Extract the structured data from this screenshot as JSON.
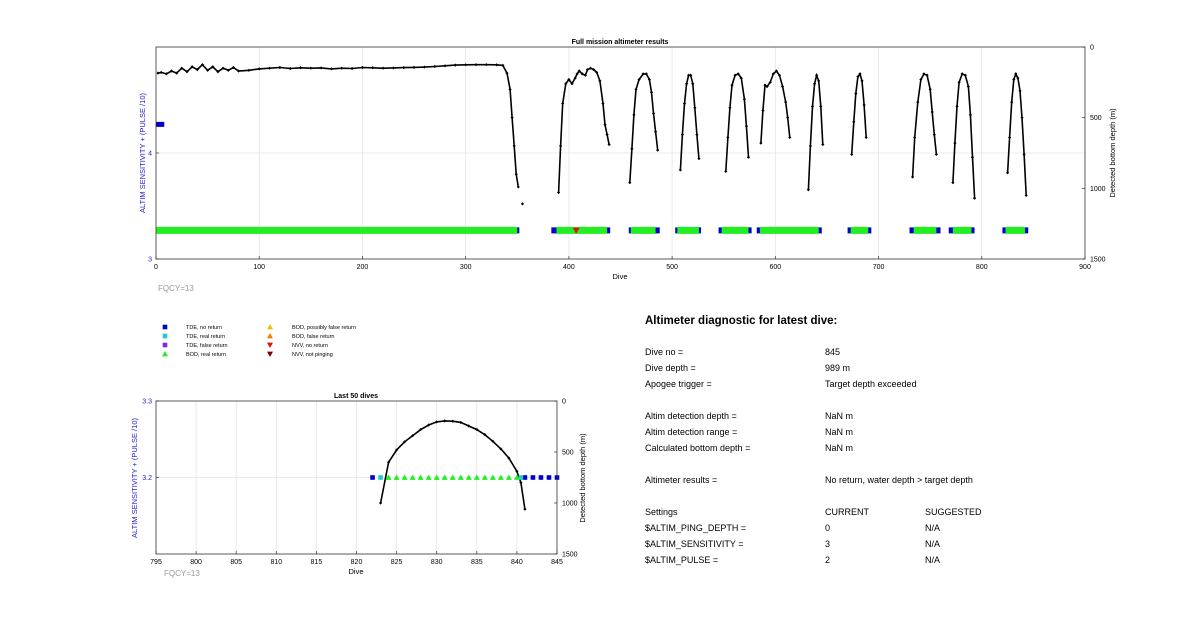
{
  "chart_data": [
    {
      "type": "scatter",
      "title": "Full mission altimeter results",
      "xlabel": "Dive",
      "ylabel": "ALTIM SENSITIVITY + (PULSE /10)",
      "y2label": "Detected bottom depth (m)",
      "xlim": [
        0,
        900
      ],
      "ylim": [
        3,
        5
      ],
      "y2lim": [
        1500,
        0
      ],
      "xticks": [
        "0",
        "100",
        "200",
        "300",
        "400",
        "500",
        "600",
        "700",
        "800",
        "900"
      ],
      "yticks": [
        "3",
        "4"
      ],
      "y2ticks": [
        "0",
        "500",
        "1000",
        "1500"
      ],
      "grid": true,
      "annotation": "FQCY=13",
      "sensitivity_setting": {
        "x": [
          0,
          8
        ],
        "y": 4.27
      },
      "tde_band": {
        "y": 3.27,
        "segments": [
          [
            0,
            352
          ],
          [
            383,
            440
          ],
          [
            458,
            488
          ],
          [
            503,
            528
          ],
          [
            545,
            577
          ],
          [
            582,
            642
          ],
          [
            628,
            645
          ],
          [
            670,
            693
          ],
          [
            730,
            760
          ],
          [
            768,
            793
          ],
          [
            820,
            845
          ]
        ]
      },
      "bod_band": {
        "y": 3.27,
        "segments": [
          [
            0,
            350
          ],
          [
            388,
            437
          ],
          [
            460,
            484
          ],
          [
            505,
            526
          ],
          [
            548,
            574
          ],
          [
            585,
            638
          ],
          [
            632,
            642
          ],
          [
            673,
            690
          ],
          [
            734,
            756
          ],
          [
            772,
            790
          ],
          [
            823,
            842
          ]
        ]
      },
      "nvv_no_return": {
        "x": [
          407
        ],
        "y": 3.27
      },
      "bottom_depth": {
        "groups": [
          {
            "x": [
              2,
              5,
              10,
              15,
              20,
              25,
              30,
              35,
              40,
              45,
              50,
              55,
              60,
              65,
              70,
              75,
              80,
              90,
              100,
              110,
              120,
              130,
              140,
              150,
              160,
              170,
              180,
              190,
              200,
              210,
              220,
              230,
              240,
              250,
              260,
              270,
              280,
              290,
              300,
              310,
              320,
              330,
              336,
              340,
              343,
              345,
              347,
              349,
              351
            ],
            "y": [
              185,
              180,
              190,
              170,
              185,
              150,
              175,
              140,
              160,
              125,
              165,
              140,
              175,
              150,
              165,
              145,
              170,
              165,
              155,
              150,
              145,
              152,
              147,
              150,
              148,
              155,
              150,
              152,
              145,
              147,
              150,
              148,
              146,
              144,
              142,
              138,
              133,
              128,
              126,
              125,
              125,
              126,
              130,
              185,
              300,
              500,
              700,
              900,
              990
            ]
          },
          {
            "x": [
              355
            ],
            "y": [
              1110
            ]
          },
          {
            "x": [
              390,
              392,
              394,
              397,
              400,
              403,
              406,
              408,
              410,
              413,
              416,
              418,
              421,
              424,
              427,
              430,
              433,
              435,
              437,
              439
            ],
            "y": [
              1030,
              700,
              400,
              260,
              230,
              260,
              220,
              190,
              170,
              190,
              200,
              160,
              150,
              160,
              180,
              240,
              400,
              550,
              620,
              690
            ]
          },
          {
            "x": [
              459,
              461,
              463,
              465,
              468,
              472,
              475,
              478,
              480,
              482,
              484,
              486
            ],
            "y": [
              960,
              720,
              480,
              300,
              230,
              190,
              190,
              230,
              320,
              470,
              600,
              730
            ]
          },
          {
            "x": [
              508,
              510,
              512,
              514,
              516,
              518,
              520,
              522,
              524,
              526
            ],
            "y": [
              870,
              620,
              400,
              260,
              200,
              200,
              260,
              430,
              620,
              790
            ]
          },
          {
            "x": [
              552,
              554,
              556,
              558,
              561,
              564,
              567,
              570,
              572,
              574
            ],
            "y": [
              880,
              640,
              430,
              270,
              200,
              190,
              220,
              370,
              560,
              780
            ]
          },
          {
            "x": [
              586,
              588,
              590,
              592,
              595,
              598,
              601,
              604,
              607,
              610,
              612,
              614
            ],
            "y": [
              680,
              450,
              270,
              280,
              250,
              190,
              170,
              200,
              280,
              390,
              500,
              640
            ]
          },
          {
            "x": [
              632,
              634,
              636,
              638,
              640,
              642,
              644,
              646
            ],
            "y": [
              1010,
              700,
              420,
              260,
              200,
              240,
              420,
              690
            ]
          },
          {
            "x": [
              674,
              676,
              678,
              680,
              682,
              684,
              686,
              688
            ],
            "y": [
              760,
              530,
              330,
              210,
              190,
              240,
              410,
              640
            ]
          },
          {
            "x": [
              733,
              735,
              738,
              741,
              744,
              747,
              750,
              752,
              754,
              756
            ],
            "y": [
              920,
              640,
              390,
              230,
              190,
              200,
              300,
              460,
              620,
              760
            ]
          },
          {
            "x": [
              772,
              774,
              776,
              778,
              781,
              784,
              787,
              789,
              791,
              793
            ],
            "y": [
              960,
              680,
              420,
              250,
              190,
              200,
              280,
              480,
              780,
              1070
            ]
          },
          {
            "x": [
              825,
              827,
              829,
              831,
              833,
              835,
              837,
              839,
              841,
              843
            ],
            "y": [
              890,
              640,
              390,
              230,
              190,
              220,
              310,
              500,
              760,
              1050
            ]
          }
        ]
      }
    },
    {
      "type": "scatter",
      "title": "Last 50 dives",
      "xlabel": "Dive",
      "ylabel": "ALTIM SENSITIVITY + (PULSE /10)",
      "y2label": "Detected bottom depth (m)",
      "xlim": [
        795,
        845
      ],
      "ylim": [
        3.1,
        3.3
      ],
      "y2lim": [
        1500,
        0
      ],
      "xticks": [
        "795",
        "800",
        "805",
        "810",
        "815",
        "820",
        "825",
        "830",
        "835",
        "840",
        "845"
      ],
      "yticks": [
        "3.2",
        "3.3"
      ],
      "y2ticks": [
        "0",
        "500",
        "1000",
        "1500"
      ],
      "grid": true,
      "annotation": "FQCY=13",
      "tde_no_return": {
        "x": [
          822,
          841,
          842,
          843,
          844,
          845
        ],
        "y": 3.2
      },
      "tde_real_return": {
        "x": [
          823,
          840.5
        ],
        "y": 3.2
      },
      "bod_real_return": {
        "x": [
          824,
          825,
          826,
          827,
          828,
          829,
          830,
          831,
          832,
          833,
          834,
          835,
          836,
          837,
          838,
          839,
          840
        ],
        "y": 3.2
      },
      "bottom_depth": {
        "x": [
          823,
          824,
          825,
          826,
          827,
          828,
          829,
          830,
          831,
          832,
          833,
          834,
          835,
          836,
          837,
          838,
          839,
          840,
          840.5,
          841
        ],
        "y": [
          1000,
          600,
          480,
          400,
          340,
          280,
          235,
          205,
          195,
          198,
          210,
          245,
          280,
          330,
          395,
          470,
          560,
          690,
          800,
          1060
        ]
      }
    }
  ],
  "legend": [
    {
      "label": "TDE, no return",
      "marker": "square",
      "color": "#0000cc"
    },
    {
      "label": "TDE, real return",
      "marker": "square",
      "color": "#22cccc"
    },
    {
      "label": "TDE, false return",
      "marker": "square",
      "color": "#7b2ee0"
    },
    {
      "label": "BOD, real return",
      "marker": "triangle-up",
      "color": "#22ee22"
    },
    {
      "label": "BOD, possibly false return",
      "marker": "triangle-up",
      "color": "#f0c000"
    },
    {
      "label": "BOD, false return",
      "marker": "triangle-up",
      "color": "#f08000"
    },
    {
      "label": "NVV, no return",
      "marker": "triangle-down",
      "color": "#e01010"
    },
    {
      "label": "NVV, not pinging",
      "marker": "triangle-down",
      "color": "#800000"
    }
  ],
  "colors": {
    "axis": "#333333",
    "grid": "#e4e4e4",
    "ylabel": "#2222cc",
    "annotation": "#999999",
    "tde_no_return": "#0000cc",
    "tde_real_return": "#22cccc",
    "bod_real_return": "#22ee22",
    "nvv_no_return": "#e01010",
    "line": "#000000"
  },
  "panel": {
    "title": "Altimeter diagnostic for latest dive:",
    "rows": [
      {
        "label": "Dive no =",
        "value": "845"
      },
      {
        "label": "Dive depth =",
        "value": "989 m"
      },
      {
        "label": "Apogee trigger =",
        "value": "Target depth exceeded"
      },
      {
        "label": "Altim detection depth =",
        "value": "NaN m"
      },
      {
        "label": "Altim detection range =",
        "value": "NaN m"
      },
      {
        "label": "Calculated bottom depth =",
        "value": "NaN m"
      },
      {
        "label": "Altimeter results =",
        "value": "No return, water depth > target depth"
      }
    ],
    "settings": {
      "header": {
        "label": "Settings",
        "current": "CURRENT",
        "suggested": "SUGGESTED"
      },
      "rows": [
        {
          "label": "$ALTIM_PING_DEPTH =",
          "current": "0",
          "suggested": "N/A"
        },
        {
          "label": "$ALTIM_SENSITIVITY =",
          "current": "3",
          "suggested": "N/A"
        },
        {
          "label": "$ALTIM_PULSE =",
          "current": "2",
          "suggested": "N/A"
        }
      ]
    }
  }
}
